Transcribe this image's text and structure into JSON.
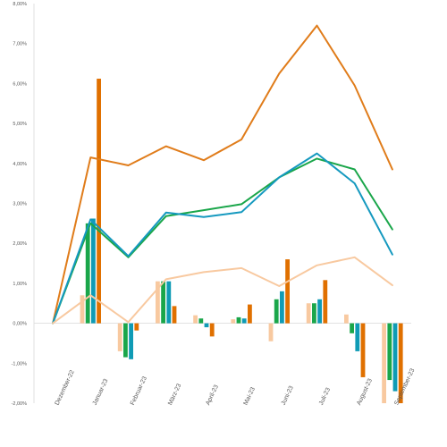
{
  "chart_data": {
    "type": "bar",
    "categories": [
      "Dezember-22",
      "Januar-23",
      "Februar-23",
      "März-23",
      "April-23",
      "Mai-23",
      "Juni-23",
      "Juli-23",
      "August-23",
      "September-23"
    ],
    "ylim": [
      -2,
      8
    ],
    "yticks": [
      "-2,00%",
      "-1,00%",
      "0,00%",
      "1,00%",
      "2,00%",
      "3,00%",
      "4,00%",
      "5,00%",
      "6,00%",
      "7,00%",
      "8,00%"
    ],
    "grid": false,
    "legend": "none",
    "series": [
      {
        "kind": "bar",
        "color": "#f8c9a0",
        "values": [
          0,
          0.7,
          -0.7,
          1.05,
          0.2,
          0.1,
          -0.45,
          0.5,
          0.22,
          -2.0
        ]
      },
      {
        "kind": "bar",
        "color": "#1aa64a",
        "values": [
          0,
          2.5,
          -0.85,
          1.05,
          0.12,
          0.15,
          0.6,
          0.5,
          -0.25,
          -1.42
        ]
      },
      {
        "kind": "bar",
        "color": "#0f9bb5",
        "values": [
          0,
          2.62,
          -0.9,
          1.05,
          -0.1,
          0.12,
          0.8,
          0.6,
          -0.7,
          -1.7
        ]
      },
      {
        "kind": "bar",
        "color": "#e07000",
        "values": [
          0,
          6.12,
          -0.18,
          0.43,
          -0.33,
          0.47,
          1.6,
          1.08,
          -1.35,
          -2.0
        ]
      },
      {
        "kind": "line",
        "color": "#e07c1a",
        "values": [
          0,
          4.15,
          3.95,
          4.43,
          4.08,
          4.6,
          6.25,
          7.45,
          5.95,
          3.85
        ]
      },
      {
        "kind": "line",
        "color": "#1aa64a",
        "values": [
          0,
          2.5,
          1.65,
          2.68,
          2.83,
          2.98,
          3.65,
          4.12,
          3.85,
          2.35
        ]
      },
      {
        "kind": "line",
        "color": "#1599bf",
        "values": [
          0,
          2.6,
          1.68,
          2.77,
          2.66,
          2.78,
          3.65,
          4.25,
          3.5,
          1.72
        ]
      },
      {
        "kind": "line",
        "color": "#f8c9a0",
        "values": [
          0,
          0.7,
          0.03,
          1.1,
          1.28,
          1.38,
          0.93,
          1.45,
          1.65,
          0.95
        ]
      }
    ]
  }
}
